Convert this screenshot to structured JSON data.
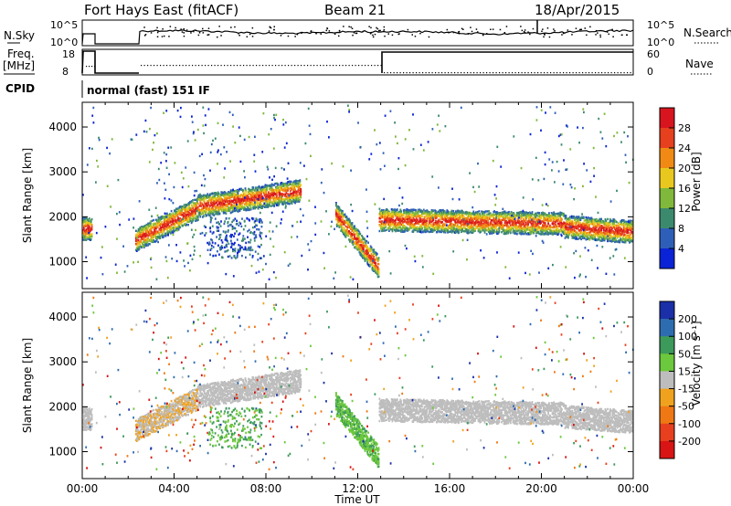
{
  "header": {
    "station": "Fort Hays East (fitACF)",
    "beam": "Beam 21",
    "date": "18/Apr/2015"
  },
  "status_panels": {
    "nsky_label": "N.Sky",
    "nsearch_label": "N.Search",
    "freq_label_line1": "Freq.",
    "freq_label_line2": "[MHz]",
    "nave_label": "Nave",
    "cpid_label": "CPID",
    "cpid_value": "normal (fast) 151 IF",
    "noise_ticks": [
      "10^5",
      "10^0"
    ],
    "noise_ticks_right": [
      "10^5",
      "10^0"
    ],
    "freq_ticks": [
      "18",
      "8"
    ],
    "nave_ticks": [
      "60",
      "0"
    ]
  },
  "colors": {
    "power": [
      "#0a23d6",
      "#2e5fb8",
      "#3c8a6e",
      "#7fb83a",
      "#e8c81e",
      "#f08a14",
      "#e6401e",
      "#d8141e"
    ],
    "velocity": [
      "#1a2fa8",
      "#2e6cb0",
      "#3c9a5a",
      "#6cc83c",
      "#bdbdbd",
      "#f0a21e",
      "#f07814",
      "#e8401e",
      "#d81414"
    ]
  },
  "chart_data": [
    {
      "type": "heatmap",
      "quantity": "power",
      "ylabel": "Slant Range [km]",
      "yticks": [
        1000,
        2000,
        3000,
        4000
      ],
      "ylim": [
        400,
        4550
      ],
      "xlim": [
        0,
        24
      ],
      "colorbar_label": "Power [dB]",
      "colorbar_ticks": [
        4,
        8,
        12,
        16,
        20,
        24,
        28
      ],
      "colorbar_range": [
        0,
        32
      ],
      "echo_bands": [
        {
          "t0": 0.0,
          "t1": 0.4,
          "r_low": 1550,
          "r_high": 2250
        },
        {
          "t0": 2.3,
          "t1": 5.0,
          "r_low": 1400,
          "r_high": 2200
        },
        {
          "t0": 5.0,
          "t1": 9.5,
          "r_low": 2200,
          "r_high": 2800
        },
        {
          "t0": 11.0,
          "t1": 12.9,
          "r_low": 700,
          "r_high": 2300
        },
        {
          "t0": 12.9,
          "t1": 24.0,
          "r_low": 1700,
          "r_high": 2350
        }
      ]
    },
    {
      "type": "heatmap",
      "quantity": "velocity",
      "ylabel": "Slant Range [km]",
      "yticks": [
        1000,
        2000,
        3000,
        4000
      ],
      "ylim": [
        400,
        4550
      ],
      "xlim": [
        0,
        24
      ],
      "xlabel": "Time UT",
      "xticks": [
        "00:00",
        "04:00",
        "08:00",
        "12:00",
        "16:00",
        "20:00",
        "00:00"
      ],
      "colorbar_label": "Velocity [m s⁻¹]",
      "colorbar_ticks": [
        200,
        100,
        50,
        15,
        -15,
        -50,
        -100,
        -200
      ]
    }
  ]
}
